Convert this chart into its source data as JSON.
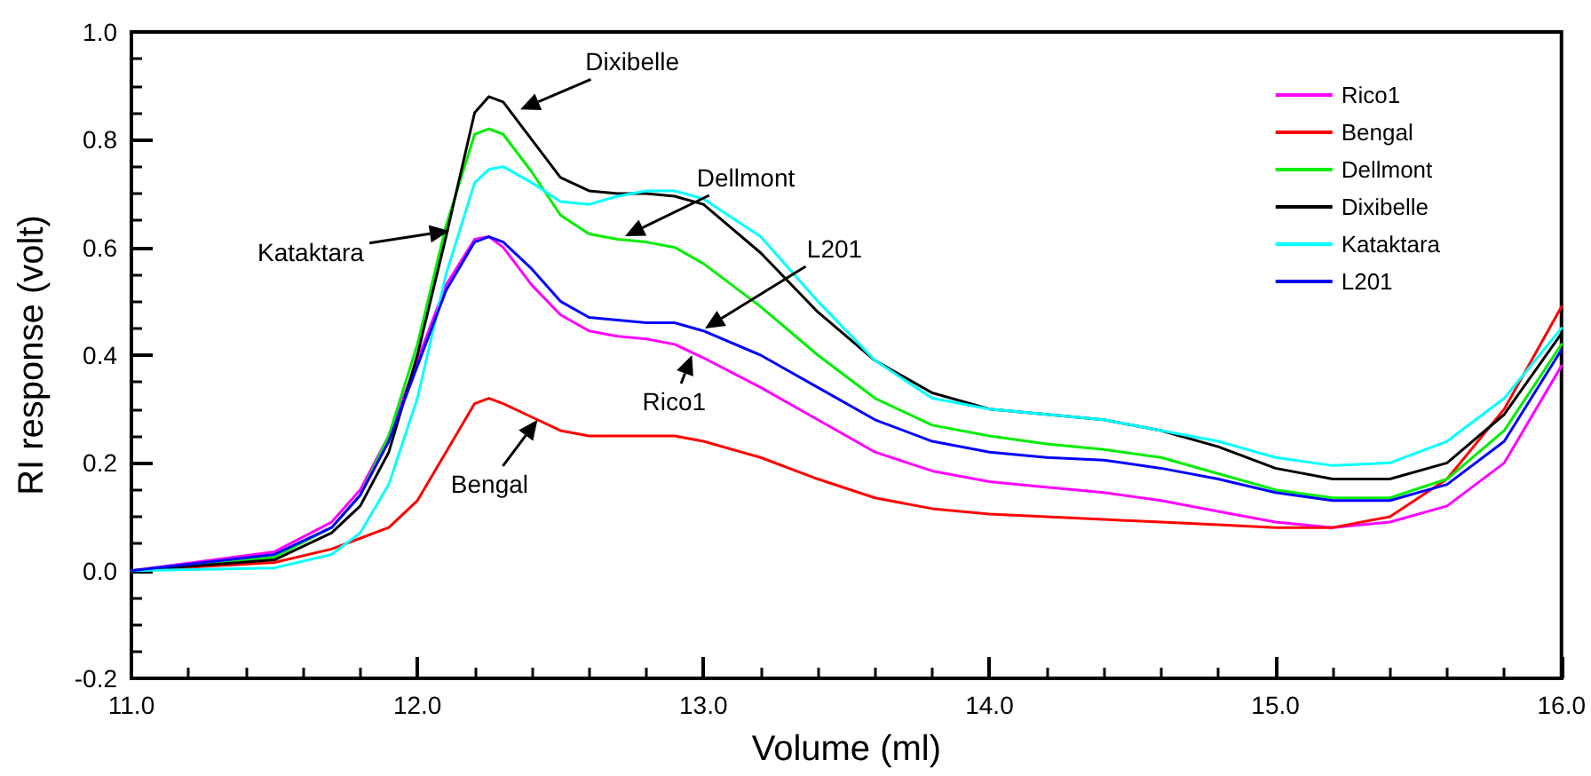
{
  "chart_data": {
    "type": "line",
    "xlabel": "Volume (ml)",
    "ylabel": "RI response (volt)",
    "x": [
      11.0,
      11.5,
      11.7,
      11.8,
      11.9,
      12.0,
      12.1,
      12.2,
      12.25,
      12.3,
      12.4,
      12.5,
      12.6,
      12.7,
      12.8,
      12.9,
      13.0,
      13.2,
      13.4,
      13.6,
      13.8,
      14.0,
      14.2,
      14.4,
      14.6,
      14.8,
      15.0,
      15.2,
      15.4,
      15.6,
      15.8,
      16.0
    ],
    "series": [
      {
        "name": "Rico1",
        "color": "#ff00ff",
        "values": [
          0,
          0.035,
          0.09,
          0.15,
          0.25,
          0.39,
          0.53,
          0.615,
          0.62,
          0.6,
          0.53,
          0.475,
          0.445,
          0.435,
          0.43,
          0.42,
          0.395,
          0.34,
          0.28,
          0.22,
          0.185,
          0.165,
          0.155,
          0.145,
          0.13,
          0.11,
          0.09,
          0.08,
          0.09,
          0.12,
          0.2,
          0.38
        ]
      },
      {
        "name": "Bengal",
        "color": "#ff0000",
        "values": [
          0,
          0.015,
          0.04,
          0.06,
          0.08,
          0.13,
          0.22,
          0.31,
          0.32,
          0.31,
          0.285,
          0.26,
          0.25,
          0.25,
          0.25,
          0.25,
          0.24,
          0.21,
          0.17,
          0.135,
          0.115,
          0.105,
          0.1,
          0.095,
          0.09,
          0.085,
          0.08,
          0.08,
          0.1,
          0.17,
          0.3,
          0.49
        ]
      },
      {
        "name": "Dellmont",
        "color": "#00ee00",
        "values": [
          0,
          0.025,
          0.08,
          0.14,
          0.25,
          0.42,
          0.64,
          0.81,
          0.82,
          0.81,
          0.74,
          0.66,
          0.625,
          0.615,
          0.61,
          0.6,
          0.57,
          0.49,
          0.4,
          0.32,
          0.27,
          0.25,
          0.235,
          0.225,
          0.21,
          0.18,
          0.15,
          0.135,
          0.135,
          0.17,
          0.26,
          0.42
        ]
      },
      {
        "name": "Dixibelle",
        "color": "#000000",
        "values": [
          0,
          0.02,
          0.07,
          0.12,
          0.22,
          0.4,
          0.62,
          0.85,
          0.88,
          0.87,
          0.8,
          0.73,
          0.705,
          0.7,
          0.7,
          0.695,
          0.68,
          0.59,
          0.48,
          0.39,
          0.33,
          0.3,
          0.29,
          0.28,
          0.26,
          0.23,
          0.19,
          0.17,
          0.17,
          0.2,
          0.29,
          0.44
        ]
      },
      {
        "name": "Kataktara",
        "color": "#00ffff",
        "values": [
          0,
          0.005,
          0.03,
          0.07,
          0.16,
          0.32,
          0.55,
          0.72,
          0.745,
          0.75,
          0.72,
          0.685,
          0.68,
          0.695,
          0.705,
          0.705,
          0.69,
          0.62,
          0.5,
          0.39,
          0.32,
          0.3,
          0.29,
          0.28,
          0.26,
          0.24,
          0.21,
          0.195,
          0.2,
          0.24,
          0.32,
          0.45
        ]
      },
      {
        "name": "L201",
        "color": "#0000ff",
        "values": [
          0,
          0.03,
          0.08,
          0.14,
          0.24,
          0.38,
          0.52,
          0.61,
          0.62,
          0.61,
          0.56,
          0.5,
          0.47,
          0.465,
          0.46,
          0.46,
          0.445,
          0.4,
          0.34,
          0.28,
          0.24,
          0.22,
          0.21,
          0.205,
          0.19,
          0.17,
          0.145,
          0.13,
          0.13,
          0.16,
          0.24,
          0.41
        ]
      }
    ],
    "xlim": [
      11.0,
      16.0
    ],
    "xticks": [
      {
        "value": 11,
        "label": "11.0"
      },
      {
        "value": 12,
        "label": "12.0"
      },
      {
        "value": 13,
        "label": "13.0"
      },
      {
        "value": 14,
        "label": "14.0"
      },
      {
        "value": 15,
        "label": "15.0"
      },
      {
        "value": 16,
        "label": "16.0"
      }
    ],
    "ylim": [
      -0.2,
      1.0
    ],
    "yticks": [
      {
        "value": -0.2,
        "label": "-0.2"
      },
      {
        "value": 0,
        "label": "0.0"
      },
      {
        "value": 0.2,
        "label": "0.2"
      },
      {
        "value": 0.4,
        "label": "0.4"
      },
      {
        "value": 0.6,
        "label": "0.6"
      },
      {
        "value": 0.8,
        "label": "0.8"
      },
      {
        "value": 1.0,
        "label": "1.0"
      }
    ],
    "annotations": [
      {
        "text": "Dixibelle",
        "x": 12.36,
        "y": 0.856
      },
      "Dellmont",
      "L201",
      {
        "text": "Rico1",
        "x": 12.96,
        "y": 0.4
      },
      {
        "text": "Bengal",
        "x": 12.42,
        "y": 0.28
      },
      "Kataktara"
    ],
    "grid": false,
    "legend": "top right",
    "marker": "none",
    "line_style": "solid"
  }
}
